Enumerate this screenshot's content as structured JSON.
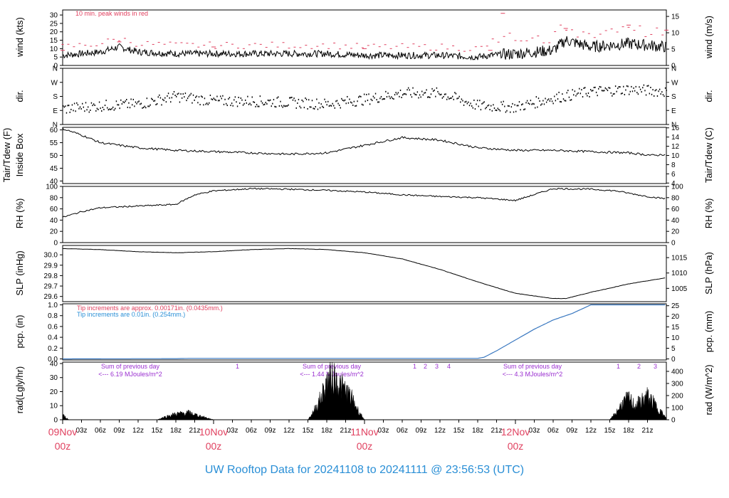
{
  "title": "UW Rooftop Data for 20241108  to  20241111 @ 23:56:53  (UTC)",
  "colors": {
    "title": "#2a8fd6",
    "day_label": "#e0405f",
    "peak": "#e0405f",
    "tip_red": "#e0405f",
    "tip_blue": "#2a8fd6",
    "pcp_line": "#3a78c0",
    "rad_note": "#9a2fd0"
  },
  "x_axis": {
    "hour_ticks": [
      "03z",
      "06z",
      "09z",
      "12z",
      "15z",
      "18z",
      "21z"
    ],
    "days": [
      {
        "date": "09Nov",
        "time": "00z"
      },
      {
        "date": "10Nov",
        "time": "00z"
      },
      {
        "date": "11Nov",
        "time": "00z"
      },
      {
        "date": "12Nov",
        "time": "00z"
      }
    ]
  },
  "panels": {
    "wind": {
      "left_label": "wind (kts)",
      "right_label": "wind (m/s)",
      "left_ticks": [
        "0",
        "5",
        "10",
        "15",
        "20",
        "25",
        "30"
      ],
      "right_ticks": [
        "0",
        "5",
        "10",
        "15"
      ],
      "note": "10 min. peak winds in red"
    },
    "dir": {
      "left_label": "dir.",
      "right_label": "dir.",
      "ticks": [
        "N",
        "E",
        "S",
        "W",
        "N"
      ]
    },
    "temp": {
      "left_label_1": "Tair/Tdew (F)",
      "left_label_2": "Inside Box",
      "right_label": "Tair/Tdew (C)",
      "left_ticks": [
        "40",
        "45",
        "50",
        "55",
        "60"
      ],
      "right_ticks": [
        "4",
        "6",
        "8",
        "10",
        "12",
        "14",
        "16"
      ]
    },
    "rh": {
      "left_label": "RH (%)",
      "right_label": "RH (%)",
      "ticks": [
        "0",
        "20",
        "40",
        "60",
        "80",
        "100"
      ]
    },
    "slp": {
      "left_label": "SLP (inHg)",
      "right_label": "SLP (hPa)",
      "left_ticks": [
        "29.6",
        "29.7",
        "29.8",
        "29.9",
        "30.0"
      ],
      "right_ticks": [
        "1005",
        "1010",
        "1015"
      ]
    },
    "pcp": {
      "left_label": "pcp. (in)",
      "right_label": "pcp. (mm)",
      "left_ticks": [
        "0.0",
        "0.2",
        "0.4",
        "0.6",
        "0.8",
        "1.0"
      ],
      "right_ticks": [
        "0",
        "5",
        "10",
        "15",
        "20",
        "25"
      ],
      "note_red": "Tip increments are approx. 0.00171in. (0.0435mm.)",
      "note_blue": "Tip increments are 0.01in. (0.254mm.)"
    },
    "rad": {
      "left_label": "rad(Lgly/hr)",
      "right_label": "rad (W/m^2)",
      "left_ticks": [
        "0",
        "10",
        "20",
        "30",
        "40"
      ],
      "right_ticks": [
        "0",
        "100",
        "200",
        "300",
        "400"
      ],
      "sums": [
        {
          "line1": "Sum of previous day",
          "line2": "<--- 6.19 MJoules/m^2"
        },
        {
          "line1": "Sum of previous day",
          "line2": "<--- 1.44 MJoules/m^2"
        },
        {
          "line1": "Sum of previous day",
          "line2": "<--- 4.3 MJoules/m^2"
        }
      ],
      "tip_marks": [
        "1",
        "1",
        "2",
        "3",
        "4",
        "1",
        "2",
        "3"
      ]
    }
  },
  "chart_data": [
    {
      "type": "line",
      "name": "wind",
      "x_unit": "hours since 09Nov 00z",
      "y_unit": "kts",
      "ylim": [
        0,
        33
      ],
      "x": [
        0,
        6,
        9,
        12,
        18,
        24,
        30,
        36,
        42,
        48,
        54,
        60,
        66,
        68,
        72,
        78,
        80,
        84,
        90,
        96
      ],
      "values": [
        6,
        8,
        11,
        8,
        7,
        7,
        7,
        7,
        7,
        6,
        6,
        6,
        5,
        6,
        7,
        9,
        15,
        11,
        13,
        11
      ],
      "peak_x": [
        0,
        9,
        24,
        48,
        68,
        70,
        80,
        90,
        96
      ],
      "peak_values": [
        9,
        14,
        11,
        10,
        9,
        31,
        22,
        24,
        21
      ]
    },
    {
      "type": "scatter",
      "name": "dir",
      "ylim": [
        0,
        360
      ],
      "x": [
        0,
        6,
        12,
        18,
        24,
        30,
        36,
        42,
        48,
        54,
        60,
        66,
        72,
        78,
        84,
        90,
        96
      ],
      "values": [
        100,
        120,
        130,
        180,
        150,
        150,
        140,
        130,
        160,
        200,
        200,
        120,
        110,
        170,
        210,
        225,
        210
      ]
    },
    {
      "type": "line",
      "name": "Tair",
      "y_unit": "F",
      "ylim": [
        39,
        61
      ],
      "x": [
        0,
        3,
        6,
        12,
        18,
        24,
        30,
        36,
        42,
        48,
        54,
        60,
        66,
        72,
        78,
        84,
        90,
        94,
        96
      ],
      "values": [
        60.5,
        58,
        55,
        53,
        52,
        51.5,
        51,
        50.5,
        51,
        54,
        57,
        56,
        53,
        52,
        52,
        51.5,
        51,
        50,
        50.5
      ]
    },
    {
      "type": "line",
      "name": "RH",
      "y_unit": "%",
      "ylim": [
        0,
        100
      ],
      "x": [
        0,
        3,
        6,
        12,
        18,
        21,
        24,
        30,
        36,
        42,
        48,
        54,
        60,
        66,
        72,
        78,
        84,
        88,
        90,
        93,
        96
      ],
      "values": [
        45,
        55,
        62,
        65,
        68,
        85,
        92,
        96,
        95,
        93,
        90,
        85,
        82,
        80,
        75,
        96,
        95,
        92,
        88,
        82,
        78
      ]
    },
    {
      "type": "line",
      "name": "SLP",
      "y_unit": "inHg",
      "ylim": [
        29.55,
        30.09
      ],
      "x": [
        0,
        6,
        12,
        18,
        24,
        30,
        36,
        42,
        48,
        54,
        60,
        66,
        72,
        78,
        80,
        84,
        90,
        96
      ],
      "values": [
        30.06,
        30.05,
        30.03,
        30.02,
        30.03,
        30.05,
        30.06,
        30.05,
        30.02,
        29.96,
        29.86,
        29.74,
        29.63,
        29.58,
        29.58,
        29.64,
        29.72,
        29.78
      ]
    },
    {
      "type": "line",
      "name": "pcp",
      "y_unit": "in",
      "ylim": [
        0,
        1.0
      ],
      "x": [
        0,
        18,
        20,
        48,
        66,
        67,
        69,
        72,
        75,
        78,
        81,
        84,
        96
      ],
      "values": [
        0,
        0.005,
        0.01,
        0.01,
        0.01,
        0.03,
        0.15,
        0.35,
        0.55,
        0.72,
        0.84,
        1.0,
        1.0
      ]
    },
    {
      "type": "area",
      "name": "rad",
      "y_unit": "Lgly/hr",
      "ylim": [
        0,
        41
      ],
      "x": [
        0,
        1,
        15,
        16,
        18,
        20,
        22,
        24,
        39,
        40,
        41,
        42,
        43,
        44,
        45,
        46,
        47,
        48,
        87,
        88,
        89,
        90,
        91,
        92,
        93,
        94,
        95,
        96
      ],
      "values": [
        4,
        0,
        0,
        2,
        5,
        6,
        3,
        0,
        0,
        8,
        18,
        32,
        38,
        30,
        25,
        18,
        8,
        0,
        0,
        6,
        14,
        18,
        12,
        16,
        20,
        14,
        8,
        1
      ]
    }
  ]
}
